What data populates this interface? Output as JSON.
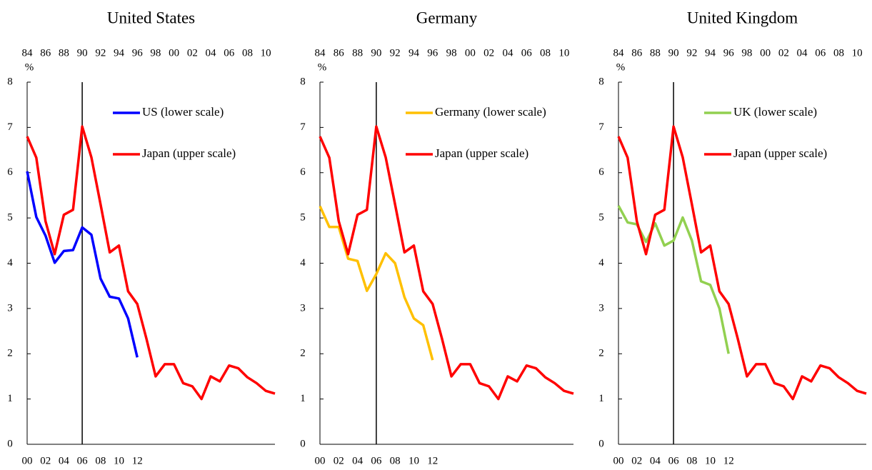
{
  "chart_data": [
    {
      "type": "line",
      "title": "United States",
      "y_unit": "%",
      "ylim": [
        0,
        8
      ],
      "yticks": [
        0,
        1,
        2,
        3,
        4,
        5,
        6,
        7,
        8
      ],
      "xlim": [
        2000,
        2027
      ],
      "xticks": [
        {
          "value": 2000,
          "label": "00"
        },
        {
          "value": 2002,
          "label": "02"
        },
        {
          "value": 2004,
          "label": "04"
        },
        {
          "value": 2006,
          "label": "06"
        },
        {
          "value": 2008,
          "label": "08"
        },
        {
          "value": 2010,
          "label": "10"
        },
        {
          "value": 2012,
          "label": "12"
        }
      ],
      "x2lim": [
        1984,
        2011
      ],
      "x2ticks": [
        {
          "value": 1984,
          "label": "84"
        },
        {
          "value": 1986,
          "label": "86"
        },
        {
          "value": 1988,
          "label": "88"
        },
        {
          "value": 1990,
          "label": "90"
        },
        {
          "value": 1992,
          "label": "92"
        },
        {
          "value": 1994,
          "label": "94"
        },
        {
          "value": 1996,
          "label": "96"
        },
        {
          "value": 1998,
          "label": "98"
        },
        {
          "value": 2000,
          "label": "00"
        },
        {
          "value": 2002,
          "label": "02"
        },
        {
          "value": 2004,
          "label": "04"
        },
        {
          "value": 2006,
          "label": "06"
        },
        {
          "value": 2008,
          "label": "08"
        },
        {
          "value": 2010,
          "label": "10"
        }
      ],
      "vline": 2006,
      "legend": "upper right",
      "series": [
        {
          "name": "US (lower scale)",
          "color": "#0000ff",
          "x": [
            2000,
            2001,
            2002,
            2003,
            2004,
            2005,
            2006,
            2007,
            2008,
            2009,
            2010,
            2011,
            2012
          ],
          "values": [
            6.03,
            5.02,
            4.61,
            4.01,
            4.27,
            4.29,
            4.79,
            4.63,
            3.66,
            3.26,
            3.22,
            2.78,
            1.92
          ]
        },
        {
          "name": "Japan (upper scale)",
          "color": "#ff0000",
          "axis": "x2",
          "x": [
            1984,
            1985,
            1986,
            1987,
            1988,
            1989,
            1990,
            1991,
            1992,
            1993,
            1994,
            1995,
            1996,
            1997,
            1998,
            1999,
            2000,
            2001,
            2002,
            2003,
            2004,
            2005,
            2006,
            2007,
            2008,
            2009,
            2010,
            2011
          ],
          "values": [
            6.8,
            6.33,
            4.93,
            4.2,
            5.07,
            5.18,
            7.02,
            6.34,
            5.3,
            4.24,
            4.39,
            3.38,
            3.1,
            2.33,
            1.5,
            1.77,
            1.77,
            1.35,
            1.28,
            1.0,
            1.5,
            1.39,
            1.74,
            1.68,
            1.48,
            1.35,
            1.18,
            1.12
          ]
        }
      ]
    },
    {
      "type": "line",
      "title": "Germany",
      "y_unit": "%",
      "ylim": [
        0,
        8
      ],
      "yticks": [
        0,
        1,
        2,
        3,
        4,
        5,
        6,
        7,
        8
      ],
      "xlim": [
        2000,
        2027
      ],
      "xticks": [
        {
          "value": 2000,
          "label": "00"
        },
        {
          "value": 2002,
          "label": "02"
        },
        {
          "value": 2004,
          "label": "04"
        },
        {
          "value": 2006,
          "label": "06"
        },
        {
          "value": 2008,
          "label": "08"
        },
        {
          "value": 2010,
          "label": "10"
        },
        {
          "value": 2012,
          "label": "12"
        }
      ],
      "x2lim": [
        1984,
        2011
      ],
      "x2ticks": [
        {
          "value": 1984,
          "label": "84"
        },
        {
          "value": 1986,
          "label": "86"
        },
        {
          "value": 1988,
          "label": "88"
        },
        {
          "value": 1990,
          "label": "90"
        },
        {
          "value": 1992,
          "label": "92"
        },
        {
          "value": 1994,
          "label": "94"
        },
        {
          "value": 1996,
          "label": "96"
        },
        {
          "value": 1998,
          "label": "98"
        },
        {
          "value": 2000,
          "label": "00"
        },
        {
          "value": 2002,
          "label": "02"
        },
        {
          "value": 2004,
          "label": "04"
        },
        {
          "value": 2006,
          "label": "06"
        },
        {
          "value": 2008,
          "label": "08"
        },
        {
          "value": 2010,
          "label": "10"
        }
      ],
      "vline": 2006,
      "legend": "upper right",
      "series": [
        {
          "name": "Germany (lower scale)",
          "color": "#ffc000",
          "x": [
            2000,
            2001,
            2002,
            2003,
            2004,
            2005,
            2006,
            2007,
            2008,
            2009,
            2010,
            2011,
            2012
          ],
          "values": [
            5.26,
            4.8,
            4.8,
            4.1,
            4.05,
            3.39,
            3.76,
            4.22,
            4.0,
            3.25,
            2.78,
            2.63,
            1.86
          ]
        },
        {
          "name": "Japan (upper scale)",
          "color": "#ff0000",
          "axis": "x2",
          "x": [
            1984,
            1985,
            1986,
            1987,
            1988,
            1989,
            1990,
            1991,
            1992,
            1993,
            1994,
            1995,
            1996,
            1997,
            1998,
            1999,
            2000,
            2001,
            2002,
            2003,
            2004,
            2005,
            2006,
            2007,
            2008,
            2009,
            2010,
            2011
          ],
          "values": [
            6.8,
            6.33,
            4.93,
            4.2,
            5.07,
            5.18,
            7.02,
            6.34,
            5.3,
            4.24,
            4.39,
            3.38,
            3.1,
            2.33,
            1.5,
            1.77,
            1.77,
            1.35,
            1.28,
            1.0,
            1.5,
            1.39,
            1.74,
            1.68,
            1.48,
            1.35,
            1.18,
            1.12
          ]
        }
      ]
    },
    {
      "type": "line",
      "title": "United Kingdom",
      "y_unit": "%",
      "ylim": [
        0,
        8
      ],
      "yticks": [
        0,
        1,
        2,
        3,
        4,
        5,
        6,
        7,
        8
      ],
      "xlim": [
        2000,
        2027
      ],
      "xticks": [
        {
          "value": 2000,
          "label": "00"
        },
        {
          "value": 2002,
          "label": "02"
        },
        {
          "value": 2004,
          "label": "04"
        },
        {
          "value": 2006,
          "label": "06"
        },
        {
          "value": 2008,
          "label": "08"
        },
        {
          "value": 2010,
          "label": "10"
        },
        {
          "value": 2012,
          "label": "12"
        }
      ],
      "x2lim": [
        1984,
        2011
      ],
      "x2ticks": [
        {
          "value": 1984,
          "label": "84"
        },
        {
          "value": 1986,
          "label": "86"
        },
        {
          "value": 1988,
          "label": "88"
        },
        {
          "value": 1990,
          "label": "90"
        },
        {
          "value": 1992,
          "label": "92"
        },
        {
          "value": 1994,
          "label": "94"
        },
        {
          "value": 1996,
          "label": "96"
        },
        {
          "value": 1998,
          "label": "98"
        },
        {
          "value": 2000,
          "label": "00"
        },
        {
          "value": 2002,
          "label": "02"
        },
        {
          "value": 2004,
          "label": "04"
        },
        {
          "value": 2006,
          "label": "06"
        },
        {
          "value": 2008,
          "label": "08"
        },
        {
          "value": 2010,
          "label": "10"
        }
      ],
      "vline": 2006,
      "legend": "upper right",
      "series": [
        {
          "name": "UK (lower scale)",
          "color": "#92d050",
          "x": [
            2000,
            2001,
            2002,
            2003,
            2004,
            2005,
            2006,
            2007,
            2008,
            2009,
            2010,
            2011,
            2012
          ],
          "values": [
            5.27,
            4.9,
            4.86,
            4.47,
            4.88,
            4.39,
            4.5,
            5.01,
            4.5,
            3.6,
            3.52,
            3.0,
            2.0
          ]
        },
        {
          "name": "Japan (upper scale)",
          "color": "#ff0000",
          "axis": "x2",
          "x": [
            1984,
            1985,
            1986,
            1987,
            1988,
            1989,
            1990,
            1991,
            1992,
            1993,
            1994,
            1995,
            1996,
            1997,
            1998,
            1999,
            2000,
            2001,
            2002,
            2003,
            2004,
            2005,
            2006,
            2007,
            2008,
            2009,
            2010,
            2011
          ],
          "values": [
            6.8,
            6.33,
            4.93,
            4.2,
            5.07,
            5.18,
            7.02,
            6.34,
            5.3,
            4.24,
            4.39,
            3.38,
            3.1,
            2.33,
            1.5,
            1.77,
            1.77,
            1.35,
            1.28,
            1.0,
            1.5,
            1.39,
            1.74,
            1.68,
            1.48,
            1.35,
            1.18,
            1.12
          ]
        }
      ]
    }
  ]
}
